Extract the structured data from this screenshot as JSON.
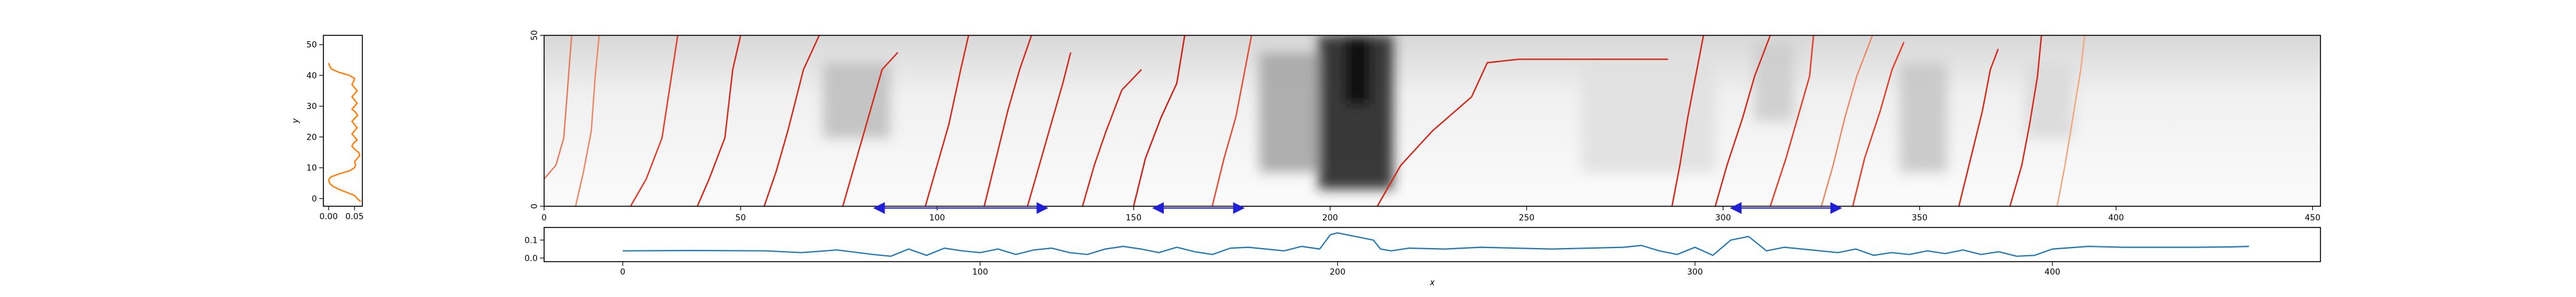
{
  "chart_data": [
    {
      "id": "left-profile",
      "type": "line",
      "xlabel": "",
      "ylabel": "y",
      "xlim": [
        -0.01,
        0.065
      ],
      "ylim": [
        -2.5,
        53
      ],
      "xticks": [
        0.0,
        0.05
      ],
      "xtick_labels": [
        "0.00",
        "0.05"
      ],
      "yticks": [
        0,
        10,
        20,
        30,
        40,
        50
      ],
      "ytick_labels": [
        "0",
        "10",
        "20",
        "30",
        "40",
        "50"
      ],
      "series": [
        {
          "color": "#ff7f0e",
          "x": [
            0.062,
            0.055,
            0.05,
            0.035,
            0.02,
            0.008,
            0.002,
            0.0,
            0.004,
            0.02,
            0.04,
            0.05,
            0.052,
            0.05,
            0.055,
            0.06,
            0.058,
            0.05,
            0.045,
            0.048,
            0.055,
            0.05,
            0.045,
            0.05,
            0.055,
            0.05,
            0.045,
            0.05,
            0.056,
            0.052,
            0.045,
            0.05,
            0.055,
            0.05,
            0.045,
            0.05,
            0.055,
            0.05,
            0.045,
            0.048,
            0.05,
            0.04,
            0.02,
            0.006,
            0.002,
            0.0
          ],
          "y": [
            -1,
            0,
            1,
            2,
            3,
            4,
            5,
            6,
            7,
            8,
            9,
            10,
            11,
            12,
            13,
            14,
            15,
            16,
            17,
            18,
            19,
            20,
            21,
            22,
            23,
            24,
            25,
            26,
            27,
            28,
            29,
            30,
            31,
            32,
            33,
            34,
            35,
            36,
            37,
            38,
            39,
            40,
            41,
            42,
            43,
            44
          ]
        }
      ]
    },
    {
      "id": "main-heatmap",
      "type": "heatmap",
      "xlim": [
        0,
        452
      ],
      "ylim": [
        0,
        50
      ],
      "xticks": [
        0,
        50,
        100,
        150,
        200,
        250,
        300,
        350,
        400,
        450
      ],
      "xtick_labels": [
        "0",
        "50",
        "100",
        "150",
        "200",
        "250",
        "300",
        "350",
        "400",
        "450"
      ],
      "yticks": [
        0,
        50
      ],
      "ytick_labels": [
        "0",
        "50"
      ],
      "colormap": "gray_r",
      "dark_regions": [
        {
          "x": [
            197,
            216
          ],
          "y": [
            5,
            50
          ],
          "intensity": 0.85
        },
        {
          "x": [
            204,
            210
          ],
          "y": [
            30,
            50
          ],
          "intensity": 0.95
        },
        {
          "x": [
            182,
            197
          ],
          "y": [
            10,
            45
          ],
          "intensity": 0.35
        },
        {
          "x": [
            71,
            88
          ],
          "y": [
            20,
            42
          ],
          "intensity": 0.25
        },
        {
          "x": [
            264,
            298
          ],
          "y": [
            10,
            45
          ],
          "intensity": 0.12
        },
        {
          "x": [
            308,
            318
          ],
          "y": [
            25,
            48
          ],
          "intensity": 0.2
        },
        {
          "x": [
            345,
            357
          ],
          "y": [
            10,
            42
          ],
          "intensity": 0.22
        },
        {
          "x": [
            377,
            389
          ],
          "y": [
            20,
            42
          ],
          "intensity": 0.15
        }
      ],
      "ridge_lines": [
        {
          "color": "#e87b5c",
          "x": [
            0,
            3,
            5,
            6,
            7
          ],
          "y": [
            8,
            12,
            20,
            35,
            50
          ]
        },
        {
          "color": "#ec8865",
          "x": [
            8,
            10,
            12,
            13,
            14
          ],
          "y": [
            0,
            10,
            22,
            38,
            50
          ]
        },
        {
          "color": "#e53a26",
          "x": [
            22,
            26,
            30,
            32,
            34
          ],
          "y": [
            0,
            8,
            20,
            35,
            50
          ]
        },
        {
          "color": "#d42718",
          "x": [
            39,
            42,
            46,
            48,
            50
          ],
          "y": [
            0,
            8,
            20,
            40,
            50
          ]
        },
        {
          "color": "#d42718",
          "x": [
            56,
            59,
            62,
            66,
            70
          ],
          "y": [
            0,
            10,
            22,
            40,
            50
          ]
        },
        {
          "color": "#d42718",
          "x": [
            76,
            79,
            82,
            86,
            90
          ],
          "y": [
            0,
            12,
            24,
            40,
            45
          ]
        },
        {
          "color": "#d42718",
          "x": [
            97,
            100,
            103,
            106,
            108
          ],
          "y": [
            0,
            12,
            24,
            40,
            50
          ]
        },
        {
          "color": "#d42718",
          "x": [
            112,
            115,
            118,
            121,
            124
          ],
          "y": [
            0,
            14,
            28,
            40,
            50
          ]
        },
        {
          "color": "#d42718",
          "x": [
            123,
            126,
            129,
            132,
            134
          ],
          "y": [
            0,
            12,
            24,
            36,
            45
          ]
        },
        {
          "color": "#d42718",
          "x": [
            137,
            140,
            143,
            147,
            152
          ],
          "y": [
            0,
            12,
            22,
            34,
            40
          ]
        },
        {
          "color": "#cc1f14",
          "x": [
            150,
            153,
            157,
            161,
            163
          ],
          "y": [
            0,
            14,
            26,
            36,
            50
          ]
        },
        {
          "color": "#e54a32",
          "x": [
            170,
            173,
            176,
            178,
            180
          ],
          "y": [
            0,
            14,
            26,
            38,
            50
          ]
        },
        {
          "color": "#d42718",
          "x": [
            212,
            218,
            226,
            236,
            240,
            248
          ],
          "y": [
            0,
            12,
            22,
            32,
            42,
            43
          ]
        },
        {
          "color": "#d42718",
          "x": [
            287,
            289,
            291,
            293,
            295
          ],
          "y": [
            0,
            12,
            26,
            38,
            50
          ]
        },
        {
          "color": "#d42718",
          "x": [
            298,
            301,
            305,
            308,
            312
          ],
          "y": [
            0,
            12,
            26,
            38,
            50
          ]
        },
        {
          "color": "#e53a26",
          "x": [
            312,
            316,
            319,
            322,
            323
          ],
          "y": [
            0,
            14,
            26,
            38,
            50
          ]
        },
        {
          "color": "#ec8865",
          "x": [
            325,
            328,
            331,
            334,
            338
          ],
          "y": [
            0,
            12,
            26,
            38,
            50
          ]
        },
        {
          "color": "#e53a26",
          "x": [
            333,
            336,
            340,
            343,
            346
          ],
          "y": [
            0,
            14,
            28,
            40,
            48
          ]
        },
        {
          "color": "#d42718",
          "x": [
            360,
            363,
            366,
            368,
            370
          ],
          "y": [
            0,
            14,
            28,
            40,
            46
          ]
        },
        {
          "color": "#d42718",
          "x": [
            373,
            376,
            378,
            380,
            381
          ],
          "y": [
            0,
            12,
            24,
            38,
            50
          ]
        },
        {
          "color": "#f0a77f",
          "x": [
            385,
            387,
            389,
            391,
            392
          ],
          "y": [
            0,
            12,
            26,
            40,
            50
          ]
        }
      ],
      "ridge_line_segments": [
        {
          "x": [
            248,
            286
          ],
          "y": [
            43,
            43
          ],
          "color": "#d42718"
        }
      ],
      "arrows": [
        {
          "x": [
            84,
            128
          ],
          "y": -1,
          "color": "#1f1fd8"
        },
        {
          "x": [
            155,
            178
          ],
          "y": -1,
          "color": "#1f1fd8"
        },
        {
          "x": [
            302,
            330
          ],
          "y": -1,
          "color": "#1f1fd8"
        }
      ]
    },
    {
      "id": "bottom-profile",
      "type": "line",
      "xlabel": "x",
      "ylabel": "",
      "xlim": [
        -22,
        475
      ],
      "ylim": [
        -0.02,
        0.17
      ],
      "xticks": [
        0,
        100,
        200,
        300,
        400
      ],
      "xtick_labels": [
        "0",
        "100",
        "200",
        "300",
        "400"
      ],
      "yticks": [
        0.0,
        0.1
      ],
      "ytick_labels": [
        "0.0",
        "0.1"
      ],
      "series": [
        {
          "color": "#1f77b4",
          "x": [
            0,
            20,
            40,
            50,
            60,
            70,
            75,
            80,
            85,
            90,
            95,
            100,
            105,
            110,
            115,
            120,
            125,
            130,
            135,
            140,
            145,
            150,
            155,
            160,
            165,
            170,
            175,
            180,
            185,
            190,
            195,
            198,
            200,
            205,
            210,
            212,
            215,
            220,
            230,
            240,
            250,
            260,
            270,
            280,
            285,
            290,
            295,
            300,
            305,
            310,
            315,
            320,
            325,
            330,
            340,
            345,
            350,
            355,
            360,
            365,
            370,
            375,
            380,
            385,
            390,
            395,
            400,
            410,
            420,
            430,
            440,
            450,
            455
          ],
          "y": [
            0.04,
            0.042,
            0.04,
            0.03,
            0.045,
            0.02,
            0.01,
            0.05,
            0.015,
            0.055,
            0.04,
            0.03,
            0.05,
            0.02,
            0.045,
            0.055,
            0.03,
            0.02,
            0.05,
            0.065,
            0.05,
            0.03,
            0.06,
            0.035,
            0.02,
            0.055,
            0.06,
            0.05,
            0.04,
            0.065,
            0.05,
            0.13,
            0.14,
            0.12,
            0.1,
            0.05,
            0.04,
            0.055,
            0.05,
            0.06,
            0.055,
            0.05,
            0.055,
            0.06,
            0.07,
            0.04,
            0.02,
            0.06,
            0.015,
            0.1,
            0.12,
            0.04,
            0.06,
            0.05,
            0.03,
            0.05,
            0.015,
            0.03,
            0.02,
            0.04,
            0.025,
            0.045,
            0.02,
            0.035,
            0.01,
            0.015,
            0.05,
            0.065,
            0.06,
            0.06,
            0.06,
            0.062,
            0.065
          ]
        }
      ]
    }
  ]
}
